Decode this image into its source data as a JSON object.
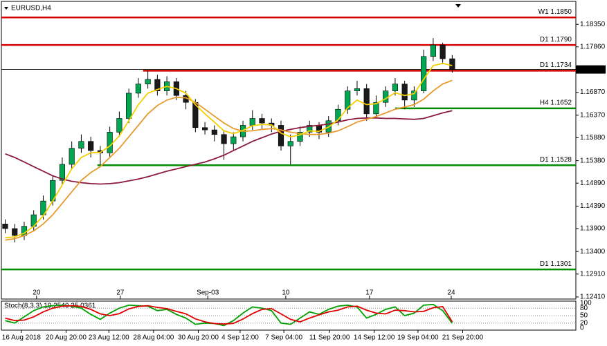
{
  "chart_data": [
    {
      "type": "candlestick",
      "title": "EURUSD,H4",
      "open": [
        1.14,
        1.139,
        1.1375,
        1.1395,
        1.142,
        1.145,
        1.1495,
        1.153,
        1.1565,
        1.158,
        1.156,
        1.1555,
        1.16,
        1.163,
        1.1685,
        1.1705,
        1.1715,
        1.169,
        1.171,
        1.168,
        1.1665,
        1.161,
        1.1605,
        1.1595,
        1.1575,
        1.159,
        1.1615,
        1.163,
        1.162,
        1.1615,
        1.157,
        1.158,
        1.16,
        1.1615,
        1.16,
        1.1625,
        1.165,
        1.169,
        1.1695,
        1.164,
        1.1665,
        1.169,
        1.1705,
        1.167,
        1.169,
        1.1765,
        1.179,
        1.176
      ],
      "high": [
        1.141,
        1.14,
        1.1405,
        1.143,
        1.1462,
        1.1505,
        1.1545,
        1.158,
        1.1595,
        1.159,
        1.157,
        1.1612,
        1.1645,
        1.1695,
        1.1718,
        1.1735,
        1.1725,
        1.1722,
        1.1718,
        1.169,
        1.1672,
        1.1622,
        1.1615,
        1.1605,
        1.16,
        1.1625,
        1.1648,
        1.164,
        1.163,
        1.1625,
        1.1595,
        1.1612,
        1.1625,
        1.1622,
        1.1635,
        1.166,
        1.17,
        1.1712,
        1.1705,
        1.168,
        1.17,
        1.1718,
        1.1712,
        1.17,
        1.178,
        1.1805,
        1.1795,
        1.1768
      ],
      "low": [
        1.138,
        1.136,
        1.1365,
        1.1385,
        1.141,
        1.144,
        1.1485,
        1.152,
        1.1555,
        1.1545,
        1.153,
        1.1545,
        1.159,
        1.162,
        1.1675,
        1.1695,
        1.168,
        1.168,
        1.167,
        1.165,
        1.16,
        1.1595,
        1.158,
        1.154,
        1.156,
        1.158,
        1.1605,
        1.1605,
        1.16,
        1.156,
        1.153,
        1.157,
        1.159,
        1.1585,
        1.159,
        1.1615,
        1.164,
        1.168,
        1.1625,
        1.163,
        1.1655,
        1.168,
        1.165,
        1.1655,
        1.1685,
        1.1755,
        1.1748,
        1.173
      ],
      "close": [
        1.139,
        1.1375,
        1.1395,
        1.142,
        1.145,
        1.1495,
        1.153,
        1.1565,
        1.158,
        1.156,
        1.1555,
        1.16,
        1.163,
        1.1685,
        1.1705,
        1.1715,
        1.169,
        1.171,
        1.168,
        1.1665,
        1.161,
        1.1605,
        1.1595,
        1.1575,
        1.159,
        1.1615,
        1.163,
        1.162,
        1.1615,
        1.157,
        1.158,
        1.16,
        1.1615,
        1.16,
        1.1625,
        1.165,
        1.169,
        1.1695,
        1.164,
        1.1665,
        1.169,
        1.1705,
        1.167,
        1.169,
        1.1765,
        1.179,
        1.176,
        1.1737
      ],
      "up_color": "#00a651",
      "down_color": "#1a1a1a",
      "lines": [
        {
          "color": "#8b1a3a",
          "values": [
            1.1553,
            1.1545,
            1.1535,
            1.1525,
            1.1515,
            1.1505,
            1.1498,
            1.1493,
            1.149,
            1.1488,
            1.1487,
            1.1488,
            1.149,
            1.1494,
            1.1498,
            1.1503,
            1.1509,
            1.1515,
            1.152,
            1.1525,
            1.153,
            1.1535,
            1.1542,
            1.155,
            1.156,
            1.157,
            1.158,
            1.1588,
            1.1596,
            1.1602,
            1.1606,
            1.161,
            1.1613,
            1.1615,
            1.1618,
            1.1622,
            1.1627,
            1.163,
            1.1631,
            1.1631,
            1.163,
            1.163,
            1.1629,
            1.1628,
            1.163,
            1.1636,
            1.1642,
            1.1647
          ]
        },
        {
          "color": "#e89a2c",
          "values": [
            1.1365,
            1.1368,
            1.1375,
            1.1385,
            1.14,
            1.142,
            1.1445,
            1.147,
            1.1495,
            1.1512,
            1.1525,
            1.1545,
            1.1565,
            1.159,
            1.1615,
            1.164,
            1.1658,
            1.167,
            1.1676,
            1.1675,
            1.1665,
            1.165,
            1.1635,
            1.162,
            1.1608,
            1.1602,
            1.1603,
            1.1606,
            1.1608,
            1.1605,
            1.16,
            1.1597,
            1.1595,
            1.1595,
            1.1598,
            1.1603,
            1.1612,
            1.1622,
            1.1628,
            1.1634,
            1.1642,
            1.165,
            1.1655,
            1.166,
            1.1672,
            1.169,
            1.1705,
            1.1713
          ]
        },
        {
          "color": "#f5d000",
          "values": [
            1.137,
            1.1372,
            1.138,
            1.1395,
            1.1418,
            1.145,
            1.1485,
            1.152,
            1.1545,
            1.1555,
            1.1556,
            1.157,
            1.1592,
            1.1625,
            1.166,
            1.1685,
            1.1693,
            1.17,
            1.1695,
            1.1685,
            1.166,
            1.164,
            1.1622,
            1.1603,
            1.1597,
            1.1604,
            1.1614,
            1.1617,
            1.1616,
            1.1598,
            1.159,
            1.1594,
            1.1603,
            1.1602,
            1.1611,
            1.1627,
            1.1653,
            1.167,
            1.166,
            1.1662,
            1.1673,
            1.1686,
            1.168,
            1.1684,
            1.1715,
            1.1745,
            1.175,
            1.1745
          ]
        }
      ],
      "levels": [
        {
          "label": "W1 1.1850",
          "value": 1.185,
          "color": "#d40000"
        },
        {
          "label": "D1 1.1790",
          "value": 1.179,
          "color": "#d40000"
        },
        {
          "label": "D1 1.1734",
          "value": 1.1734,
          "color": "#d40000",
          "from": 14.5
        },
        {
          "label": "H4 1.1652",
          "value": 1.1652,
          "color": "#008c00",
          "from": 41
        },
        {
          "label": "D1 1.1528",
          "value": 1.1528,
          "color": "#008c00",
          "from": 9.7
        },
        {
          "label": "D1 1.1301",
          "value": 1.1301,
          "color": "#008c00"
        }
      ],
      "last_price": 1.17367,
      "ylim": [
        1.1238,
        1.1876
      ],
      "yticks": [
        {
          "value": 1.1835,
          "label": "1.18350"
        },
        {
          "value": 1.1786,
          "label": "1.17860"
        },
        {
          "value": 1.1687,
          "label": "1.16870"
        },
        {
          "value": 1.1637,
          "label": "1.16370"
        },
        {
          "value": 1.1588,
          "label": "1.15880"
        },
        {
          "value": 1.1538,
          "label": "1.15380"
        },
        {
          "value": 1.1489,
          "label": "1.14890"
        },
        {
          "value": 1.1439,
          "label": "1.14390"
        },
        {
          "value": 1.139,
          "label": "1.13900"
        },
        {
          "value": 1.134,
          "label": "1.13400"
        },
        {
          "value": 1.1291,
          "label": "1.12910"
        },
        {
          "value": 1.1241,
          "label": "1.12410"
        }
      ],
      "xlim": [
        -0.4,
        60
      ],
      "xticks": [
        {
          "value": 3.3,
          "label": "20"
        },
        {
          "value": 12.1,
          "label": "27"
        },
        {
          "value": 21.3,
          "label": "Sep-03"
        },
        {
          "value": 29.5,
          "label": "10"
        },
        {
          "value": 38.3,
          "label": "17"
        },
        {
          "value": 46.9,
          "label": "24"
        }
      ]
    },
    {
      "type": "line",
      "title": "Stoch(8,3,3) 19.2540 25.0361",
      "series": [
        {
          "color": "#00a000",
          "values": [
            30,
            20,
            45,
            70,
            85,
            90,
            92,
            88,
            80,
            55,
            35,
            60,
            80,
            92,
            90,
            88,
            70,
            75,
            55,
            40,
            15,
            20,
            18,
            10,
            30,
            60,
            85,
            80,
            70,
            20,
            15,
            40,
            65,
            55,
            75,
            88,
            92,
            85,
            40,
            55,
            75,
            85,
            50,
            60,
            92,
            95,
            70,
            19.254
          ]
        },
        {
          "color": "#e00000",
          "values": [
            40,
            30,
            32,
            45,
            65,
            80,
            88,
            90,
            87,
            75,
            57,
            50,
            58,
            77,
            87,
            90,
            83,
            78,
            67,
            57,
            37,
            25,
            18,
            16,
            19,
            36,
            58,
            75,
            78,
            57,
            35,
            25,
            40,
            53,
            65,
            72,
            85,
            88,
            72,
            60,
            57,
            72,
            70,
            65,
            67,
            82,
            86,
            25.0361
          ]
        }
      ],
      "ylim": [
        0,
        100
      ],
      "yticks": [
        100,
        80,
        50,
        20,
        0
      ],
      "xlim": [
        -0.4,
        60
      ],
      "xticks": [
        {
          "value": 1.7,
          "label": "16 Aug 2018"
        },
        {
          "value": 6.4,
          "label": "20 Aug 20:00"
        },
        {
          "value": 10.9,
          "label": "23 Aug 12:00"
        },
        {
          "value": 15.6,
          "label": "28 Aug 04:00"
        },
        {
          "value": 20.3,
          "label": "30 Aug 20:00"
        },
        {
          "value": 24.7,
          "label": "4 Sep 12:00"
        },
        {
          "value": 29.3,
          "label": "7 Sep 04:00"
        },
        {
          "value": 34.1,
          "label": "11 Sep 20:00"
        },
        {
          "value": 38.8,
          "label": "14 Sep 12:00"
        },
        {
          "value": 43.4,
          "label": "19 Sep 04:00"
        },
        {
          "value": 48.1,
          "label": "21 Sep 20:00"
        }
      ]
    }
  ]
}
